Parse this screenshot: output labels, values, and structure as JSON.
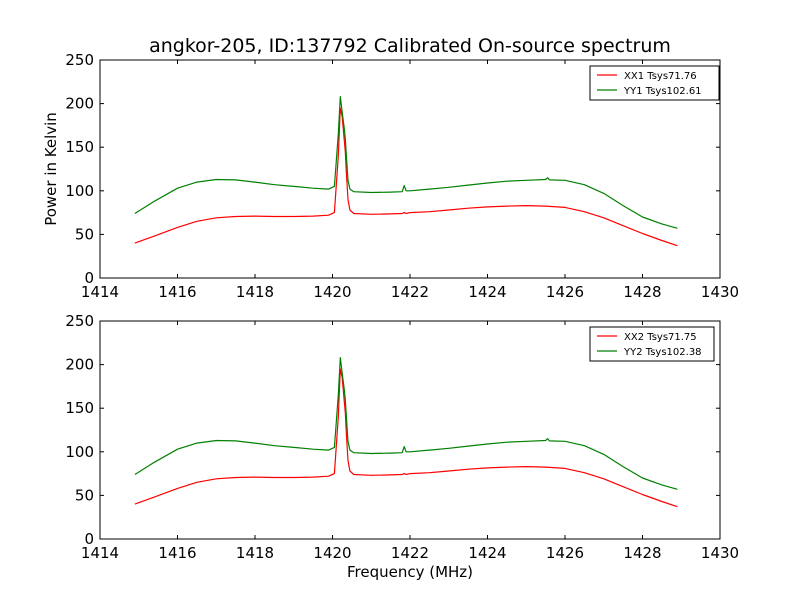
{
  "figure": {
    "title": "angkor-205, ID:137792 Calibrated On-source spectrum",
    "xlabel": "Frequency (MHz)",
    "ylabel": "Power in Kelvin"
  },
  "colors": {
    "red": "#ff0000",
    "green": "#008000"
  },
  "chart_data": [
    {
      "type": "line",
      "title": "angkor-205, ID:137792 Calibrated On-source spectrum",
      "xlabel": "",
      "ylabel": "Power in Kelvin",
      "xlim": [
        1414,
        1430
      ],
      "ylim": [
        0,
        250
      ],
      "xticks": [
        1414,
        1416,
        1418,
        1420,
        1422,
        1424,
        1426,
        1428,
        1430
      ],
      "yticks": [
        0,
        50,
        100,
        150,
        200,
        250
      ],
      "grid": false,
      "legend_position": "top-right",
      "series": [
        {
          "name": "XX1 Tsys71.76",
          "color": "#ff0000",
          "x": [
            1414.9,
            1415.4,
            1416.0,
            1416.5,
            1417.0,
            1417.5,
            1418.0,
            1418.5,
            1419.0,
            1419.5,
            1419.9,
            1420.05,
            1420.15,
            1420.2,
            1420.25,
            1420.3,
            1420.33,
            1420.36,
            1420.4,
            1420.45,
            1420.55,
            1421.0,
            1421.5,
            1421.8,
            1421.85,
            1421.9,
            1422.0,
            1422.5,
            1423.0,
            1423.5,
            1424.0,
            1424.5,
            1425.0,
            1425.5,
            1426.0,
            1426.5,
            1427.0,
            1427.5,
            1428.0,
            1428.5,
            1428.9
          ],
          "y": [
            40,
            48,
            58,
            65,
            69,
            70.5,
            71,
            70.5,
            70.5,
            71,
            72,
            75,
            140,
            195,
            185,
            160,
            145,
            120,
            90,
            78,
            74,
            73,
            73.5,
            74,
            75,
            74,
            75,
            76,
            78,
            80,
            81.5,
            82.5,
            83,
            82.5,
            81,
            76,
            69,
            60,
            51,
            43,
            37
          ]
        },
        {
          "name": "YY1 Tsys102.61",
          "color": "#008000",
          "x": [
            1414.9,
            1415.4,
            1416.0,
            1416.5,
            1417.0,
            1417.5,
            1418.0,
            1418.5,
            1419.0,
            1419.5,
            1419.9,
            1420.05,
            1420.15,
            1420.2,
            1420.25,
            1420.3,
            1420.33,
            1420.36,
            1420.4,
            1420.45,
            1420.55,
            1421.0,
            1421.5,
            1421.8,
            1421.85,
            1421.9,
            1422.0,
            1422.5,
            1423.0,
            1423.5,
            1424.0,
            1424.5,
            1425.0,
            1425.5,
            1425.55,
            1425.6,
            1426.0,
            1426.5,
            1427.0,
            1427.5,
            1428.0,
            1428.5,
            1428.9
          ],
          "y": [
            74,
            88,
            103,
            110,
            113,
            112.5,
            110,
            107,
            105,
            103,
            102,
            105,
            165,
            208,
            190,
            173,
            160,
            140,
            112,
            102,
            99,
            98,
            98.5,
            99,
            106,
            100,
            100,
            102,
            104,
            106.5,
            109,
            111,
            112,
            113,
            115,
            112.5,
            112,
            107,
            97,
            83,
            70,
            62,
            57
          ]
        }
      ]
    },
    {
      "type": "line",
      "title": "",
      "xlabel": "Frequency (MHz)",
      "ylabel": "",
      "xlim": [
        1414,
        1430
      ],
      "ylim": [
        0,
        250
      ],
      "xticks": [
        1414,
        1416,
        1418,
        1420,
        1422,
        1424,
        1426,
        1428,
        1430
      ],
      "yticks": [
        0,
        50,
        100,
        150,
        200,
        250
      ],
      "grid": false,
      "legend_position": "top-right",
      "series": [
        {
          "name": "XX2 Tsys71.75",
          "color": "#ff0000",
          "x": [
            1414.9,
            1415.4,
            1416.0,
            1416.5,
            1417.0,
            1417.5,
            1418.0,
            1418.5,
            1419.0,
            1419.5,
            1419.9,
            1420.05,
            1420.15,
            1420.2,
            1420.25,
            1420.3,
            1420.33,
            1420.36,
            1420.4,
            1420.45,
            1420.55,
            1421.0,
            1421.5,
            1421.8,
            1421.85,
            1421.9,
            1422.0,
            1422.5,
            1423.0,
            1423.5,
            1424.0,
            1424.5,
            1425.0,
            1425.5,
            1426.0,
            1426.5,
            1427.0,
            1427.5,
            1428.0,
            1428.5,
            1428.9
          ],
          "y": [
            40,
            48,
            58,
            65,
            69,
            70.5,
            71,
            70.5,
            70.5,
            71,
            72,
            75,
            140,
            195,
            185,
            160,
            145,
            120,
            90,
            78,
            74,
            73,
            73.5,
            74,
            75,
            74,
            75,
            76,
            78,
            80,
            81.5,
            82.5,
            83,
            82.5,
            81,
            76,
            69,
            60,
            51,
            43,
            37
          ]
        },
        {
          "name": "YY2 Tsys102.38",
          "color": "#008000",
          "x": [
            1414.9,
            1415.4,
            1416.0,
            1416.5,
            1417.0,
            1417.5,
            1418.0,
            1418.5,
            1419.0,
            1419.5,
            1419.9,
            1420.05,
            1420.15,
            1420.2,
            1420.25,
            1420.3,
            1420.33,
            1420.36,
            1420.4,
            1420.45,
            1420.55,
            1421.0,
            1421.5,
            1421.8,
            1421.85,
            1421.9,
            1422.0,
            1422.5,
            1423.0,
            1423.5,
            1424.0,
            1424.5,
            1425.0,
            1425.5,
            1425.55,
            1425.6,
            1426.0,
            1426.5,
            1427.0,
            1427.5,
            1428.0,
            1428.5,
            1428.9
          ],
          "y": [
            74,
            88,
            103,
            110,
            113,
            112.5,
            110,
            107,
            105,
            103,
            102,
            105,
            165,
            208,
            190,
            173,
            160,
            140,
            112,
            102,
            99,
            98,
            98.5,
            99,
            106,
            100,
            100,
            102,
            104,
            106.5,
            109,
            111,
            112,
            113,
            115,
            112.5,
            112,
            107,
            97,
            83,
            70,
            62,
            57
          ]
        }
      ]
    }
  ]
}
